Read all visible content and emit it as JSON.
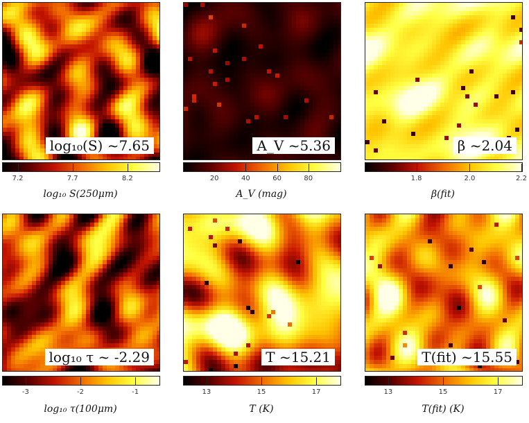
{
  "colors": {
    "colormap": "hot",
    "cmap_stops": [
      "#000000",
      "#5a0000",
      "#c41400",
      "#f06a00",
      "#ffc400",
      "#ffff40",
      "#ffffe8"
    ]
  },
  "panels": [
    {
      "annotation": "log₁₀(S) ~7.65",
      "colorbar": {
        "ticks": [
          "7.2",
          "7.7",
          "8.2"
        ],
        "tick_frac": [
          0.1,
          0.45,
          0.8
        ],
        "label": "log₁₀ S(250μm)"
      },
      "mean_level": 0.45,
      "texture": "filaments"
    },
    {
      "annotation": "A_V ~5.36",
      "colorbar": {
        "ticks": [
          "20",
          "40",
          "60",
          "80"
        ],
        "tick_frac": [
          0.2,
          0.4,
          0.6,
          0.8
        ],
        "label": "A_V (mag)"
      },
      "mean_level": 0.09,
      "texture": "dark"
    },
    {
      "annotation": "β ~2.04",
      "colorbar": {
        "ticks": [
          "1.8",
          "2.0",
          "2.2"
        ],
        "tick_frac": [
          0.33,
          0.67,
          1.0
        ],
        "label": "β(fit)"
      },
      "mean_level": 0.82,
      "texture": "bright"
    },
    {
      "annotation": "log₁₀ τ ~ -2.29",
      "colorbar": {
        "ticks": [
          "-3",
          "-2",
          "-1"
        ],
        "tick_frac": [
          0.15,
          0.5,
          0.85
        ],
        "label": "log₁₀ τ(100μm)"
      },
      "mean_level": 0.38,
      "texture": "filaments"
    },
    {
      "annotation": "T ~15.21",
      "colorbar": {
        "ticks": [
          "13",
          "15",
          "17"
        ],
        "tick_frac": [
          0.15,
          0.5,
          0.85
        ],
        "label": "T (K)"
      },
      "mean_level": 0.62,
      "texture": "medium"
    },
    {
      "annotation": "T(fit) ~15.55",
      "colorbar": {
        "ticks": [
          "13",
          "15",
          "17"
        ],
        "tick_frac": [
          0.15,
          0.5,
          0.85
        ],
        "label": "T(fit) (K)"
      },
      "mean_level": 0.64,
      "texture": "medium"
    }
  ]
}
